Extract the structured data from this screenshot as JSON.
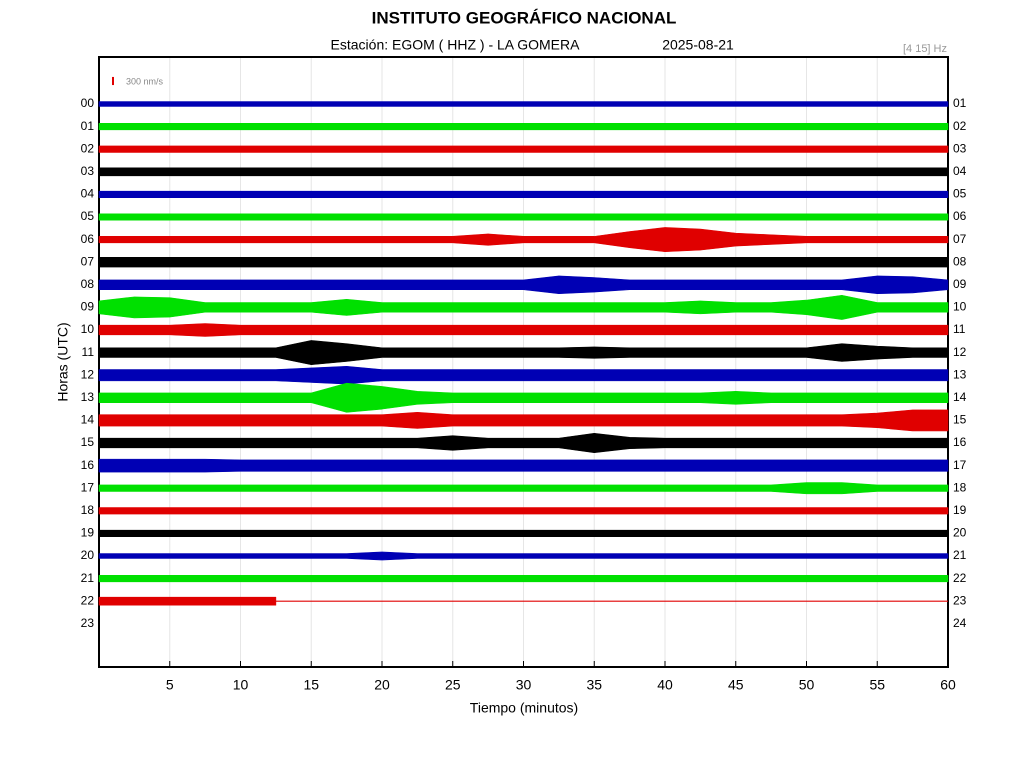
{
  "chart_data": {
    "type": "helicorder",
    "title": "INSTITUTO GEOGRÁFICO NACIONAL",
    "station": "Estación:  EGOM ( HHZ ) - LA GOMERA",
    "date": "2025-08-21",
    "filter": "[4 15] Hz",
    "scale_label": "300 nm/s",
    "scale_value": 300,
    "scale_color": "#e00000",
    "xlabel": "Tiempo (minutos)",
    "ylabel": "Horas (UTC)",
    "xlim": [
      0,
      60
    ],
    "xticks": [
      5,
      10,
      15,
      20,
      25,
      30,
      35,
      40,
      45,
      50,
      55,
      60
    ],
    "grid": true,
    "categories": [
      "00",
      "01",
      "02",
      "03",
      "04",
      "05",
      "06",
      "07",
      "08",
      "09",
      "10",
      "11",
      "12",
      "13",
      "14",
      "15",
      "16",
      "17",
      "18",
      "19",
      "20",
      "21",
      "22",
      "23"
    ],
    "right_labels": [
      "01",
      "02",
      "03",
      "04",
      "05",
      "06",
      "07",
      "08",
      "09",
      "10",
      "11",
      "12",
      "13",
      "14",
      "15",
      "16",
      "17",
      "18",
      "19",
      "20",
      "21",
      "22",
      "23",
      "24"
    ],
    "x": [
      0,
      2.5,
      5,
      7.5,
      10,
      12.5,
      15,
      17.5,
      20,
      22.5,
      25,
      27.5,
      30,
      32.5,
      35,
      37.5,
      40,
      42.5,
      45,
      47.5,
      50,
      52.5,
      55,
      57.5,
      60
    ],
    "series": [
      {
        "color": "#0000b4",
        "values": [
          30,
          30,
          30,
          30,
          30,
          30,
          30,
          30,
          30,
          30,
          30,
          30,
          30,
          30,
          30,
          30,
          30,
          30,
          30,
          30,
          30,
          30,
          30,
          30,
          30
        ]
      },
      {
        "color": "#00e000",
        "values": [
          40,
          40,
          40,
          40,
          40,
          40,
          40,
          40,
          40,
          40,
          40,
          40,
          40,
          40,
          40,
          40,
          40,
          40,
          40,
          40,
          40,
          40,
          40,
          40,
          40
        ]
      },
      {
        "color": "#e00000",
        "values": [
          40,
          40,
          40,
          40,
          40,
          40,
          40,
          40,
          40,
          40,
          40,
          40,
          40,
          40,
          40,
          40,
          40,
          40,
          40,
          40,
          40,
          40,
          40,
          40,
          40
        ]
      },
      {
        "color": "#000000",
        "values": [
          50,
          50,
          50,
          50,
          50,
          50,
          50,
          50,
          50,
          50,
          50,
          50,
          50,
          50,
          50,
          50,
          50,
          50,
          50,
          50,
          50,
          50,
          50,
          50,
          50
        ]
      },
      {
        "color": "#0000b4",
        "values": [
          40,
          40,
          40,
          40,
          40,
          40,
          40,
          40,
          40,
          40,
          40,
          40,
          40,
          40,
          40,
          40,
          40,
          40,
          40,
          40,
          40,
          40,
          40,
          40,
          40
        ]
      },
      {
        "color": "#00e000",
        "values": [
          40,
          40,
          40,
          40,
          40,
          40,
          40,
          40,
          40,
          40,
          40,
          40,
          40,
          40,
          40,
          40,
          40,
          40,
          40,
          40,
          40,
          40,
          40,
          40,
          40
        ]
      },
      {
        "color": "#e00000",
        "values": [
          40,
          40,
          40,
          40,
          40,
          40,
          40,
          40,
          40,
          40,
          40,
          70,
          40,
          40,
          40,
          100,
          150,
          130,
          80,
          60,
          40,
          40,
          40,
          40,
          40
        ]
      },
      {
        "color": "#000000",
        "values": [
          60,
          60,
          60,
          60,
          60,
          60,
          60,
          60,
          60,
          60,
          60,
          60,
          60,
          60,
          60,
          60,
          60,
          60,
          60,
          60,
          60,
          60,
          60,
          60,
          60
        ]
      },
      {
        "color": "#0000b4",
        "values": [
          60,
          60,
          60,
          60,
          60,
          60,
          60,
          60,
          60,
          60,
          60,
          60,
          60,
          110,
          90,
          60,
          60,
          60,
          60,
          60,
          60,
          60,
          110,
          100,
          60
        ]
      },
      {
        "color": "#00e000",
        "values": [
          80,
          130,
          120,
          60,
          60,
          60,
          60,
          100,
          60,
          60,
          60,
          60,
          60,
          60,
          60,
          60,
          60,
          80,
          60,
          60,
          90,
          150,
          60,
          60,
          60
        ]
      },
      {
        "color": "#e00000",
        "values": [
          60,
          60,
          60,
          80,
          60,
          60,
          60,
          60,
          60,
          60,
          60,
          60,
          60,
          60,
          60,
          60,
          60,
          60,
          60,
          60,
          60,
          60,
          60,
          60,
          60
        ]
      },
      {
        "color": "#000000",
        "values": [
          60,
          60,
          60,
          60,
          60,
          60,
          150,
          110,
          60,
          60,
          60,
          60,
          60,
          60,
          70,
          60,
          60,
          60,
          60,
          60,
          60,
          110,
          80,
          60,
          60
        ]
      },
      {
        "color": "#0000b4",
        "values": [
          70,
          70,
          70,
          70,
          70,
          70,
          90,
          110,
          70,
          70,
          70,
          70,
          70,
          70,
          70,
          70,
          70,
          70,
          70,
          70,
          70,
          70,
          70,
          70,
          70
        ]
      },
      {
        "color": "#00e000",
        "values": [
          60,
          60,
          60,
          60,
          60,
          60,
          60,
          180,
          140,
          80,
          60,
          60,
          60,
          60,
          60,
          60,
          60,
          60,
          80,
          60,
          60,
          60,
          60,
          60,
          60
        ]
      },
      {
        "color": "#e00000",
        "values": [
          70,
          70,
          70,
          70,
          70,
          70,
          70,
          70,
          70,
          100,
          70,
          70,
          70,
          70,
          70,
          70,
          70,
          70,
          70,
          70,
          70,
          70,
          90,
          130,
          130
        ]
      },
      {
        "color": "#000000",
        "values": [
          60,
          60,
          60,
          60,
          60,
          60,
          60,
          60,
          60,
          60,
          90,
          60,
          60,
          60,
          120,
          70,
          60,
          60,
          60,
          60,
          60,
          60,
          60,
          60,
          60
        ]
      },
      {
        "color": "#0000b4",
        "values": [
          80,
          80,
          80,
          80,
          70,
          70,
          70,
          70,
          70,
          70,
          70,
          70,
          70,
          70,
          70,
          70,
          70,
          70,
          70,
          70,
          70,
          70,
          70,
          70,
          70
        ]
      },
      {
        "color": "#00e000",
        "values": [
          40,
          40,
          40,
          40,
          40,
          40,
          40,
          40,
          40,
          40,
          40,
          40,
          40,
          40,
          40,
          40,
          40,
          40,
          40,
          40,
          70,
          70,
          40,
          40,
          40
        ]
      },
      {
        "color": "#e00000",
        "values": [
          40,
          40,
          40,
          40,
          40,
          40,
          40,
          40,
          40,
          40,
          40,
          40,
          40,
          40,
          40,
          40,
          40,
          40,
          40,
          40,
          40,
          40,
          40,
          40,
          40
        ]
      },
      {
        "color": "#000000",
        "values": [
          40,
          40,
          40,
          40,
          40,
          40,
          40,
          40,
          40,
          40,
          40,
          40,
          40,
          40,
          40,
          40,
          40,
          40,
          40,
          40,
          40,
          40,
          40,
          40,
          40
        ]
      },
      {
        "color": "#0000b4",
        "values": [
          30,
          30,
          30,
          30,
          30,
          30,
          30,
          30,
          50,
          30,
          30,
          30,
          30,
          30,
          30,
          30,
          30,
          30,
          30,
          30,
          30,
          30,
          30,
          30,
          30
        ]
      },
      {
        "color": "#00e000",
        "values": [
          40,
          40,
          40,
          40,
          40,
          40,
          40,
          40,
          40,
          40,
          40,
          40,
          40,
          40,
          40,
          40,
          40,
          40,
          40,
          40,
          40,
          40,
          40,
          40,
          40
        ]
      },
      {
        "color": "#e00000",
        "values": [
          50,
          50,
          50,
          50,
          50,
          50,
          null,
          null,
          null,
          null,
          null,
          null,
          null,
          null,
          null,
          null,
          null,
          null,
          null,
          null,
          null,
          null,
          null,
          null,
          null
        ]
      }
    ]
  }
}
